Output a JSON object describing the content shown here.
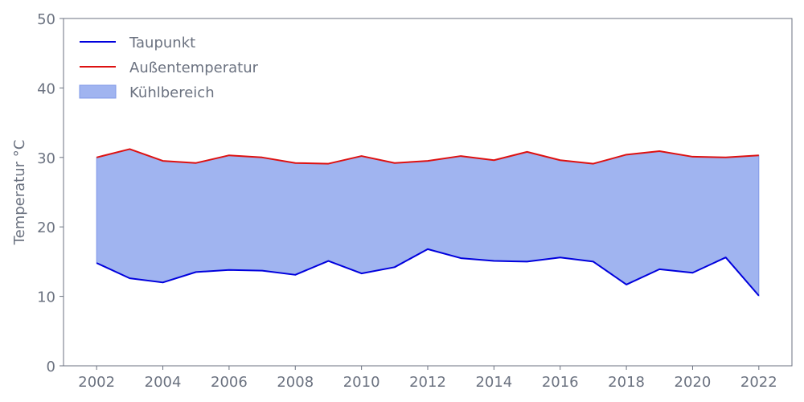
{
  "chart_data": {
    "type": "line",
    "title": "",
    "xlabel": "",
    "ylabel": "Temperatur °C",
    "xlim": [
      2001,
      2023
    ],
    "ylim": [
      0,
      50
    ],
    "x_ticks": [
      2002,
      2004,
      2006,
      2008,
      2010,
      2012,
      2014,
      2016,
      2018,
      2020,
      2022
    ],
    "y_ticks": [
      0,
      10,
      20,
      30,
      40,
      50
    ],
    "grid": false,
    "legend_position": "top-left",
    "x": [
      2002,
      2003,
      2004,
      2005,
      2006,
      2007,
      2008,
      2009,
      2010,
      2011,
      2012,
      2013,
      2014,
      2015,
      2016,
      2017,
      2018,
      2019,
      2020,
      2021,
      2022
    ],
    "series": [
      {
        "name": "Taupunkt",
        "color": "#0000dd",
        "values": [
          14.8,
          12.6,
          12.0,
          13.5,
          13.8,
          13.7,
          13.1,
          15.1,
          13.3,
          14.2,
          16.8,
          15.5,
          15.1,
          15.0,
          15.6,
          15.0,
          11.7,
          13.9,
          13.4,
          15.6,
          10.1
        ]
      },
      {
        "name": "Außentemperatur",
        "color": "#dd1111",
        "values": [
          30.0,
          31.2,
          29.5,
          29.2,
          30.3,
          30.0,
          29.2,
          29.1,
          30.2,
          29.2,
          29.5,
          30.2,
          29.6,
          30.8,
          29.6,
          29.1,
          30.4,
          30.9,
          30.1,
          30.0,
          30.3
        ]
      }
    ],
    "fill_between": {
      "name": "Kühlbereich",
      "color": "#a0b4f0",
      "edge_color": "#7f98e8",
      "lower_series": "Taupunkt",
      "upper_series": "Außentemperatur"
    },
    "axis_color": "#6b7280"
  }
}
